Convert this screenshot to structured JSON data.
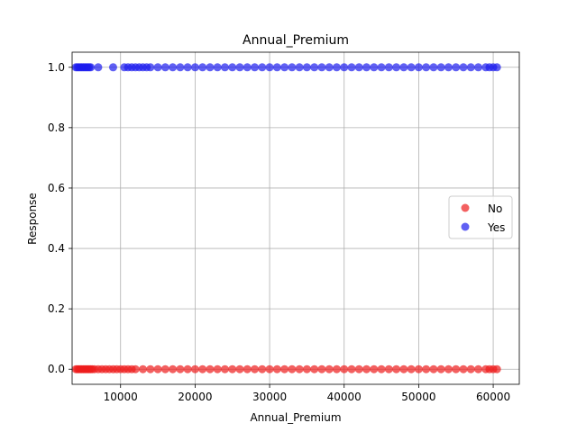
{
  "chart_data": {
    "type": "scatter",
    "title": "Annual_Premium",
    "xlabel": "Annual_Premium",
    "ylabel": "Response",
    "xlim": [
      3500,
      63500
    ],
    "ylim": [
      -0.05,
      1.05
    ],
    "xticks": [
      10000,
      20000,
      30000,
      40000,
      50000,
      60000
    ],
    "xtick_labels": [
      "10000",
      "20000",
      "30000",
      "40000",
      "50000",
      "60000"
    ],
    "yticks": [
      0.0,
      0.2,
      0.4,
      0.6,
      0.8,
      1.0
    ],
    "ytick_labels": [
      "0.0",
      "0.2",
      "0.4",
      "0.6",
      "0.8",
      "1.0"
    ],
    "grid": true,
    "legend_position": "right",
    "series": [
      {
        "name": "No",
        "color": "#ee1c1c",
        "alpha": 0.7,
        "y": 0,
        "x": [
          4000,
          4200,
          4400,
          4600,
          4800,
          5000,
          5200,
          5400,
          5600,
          5800,
          6000,
          6200,
          6500,
          7000,
          7500,
          8000,
          8500,
          9000,
          9500,
          10000,
          10500,
          11000,
          11500,
          12000,
          13000,
          14000,
          15000,
          16000,
          17000,
          18000,
          19000,
          20000,
          21000,
          22000,
          23000,
          24000,
          25000,
          26000,
          27000,
          28000,
          29000,
          30000,
          31000,
          32000,
          33000,
          34000,
          35000,
          36000,
          37000,
          38000,
          39000,
          40000,
          41000,
          42000,
          43000,
          44000,
          45000,
          46000,
          47000,
          48000,
          49000,
          50000,
          51000,
          52000,
          53000,
          54000,
          55000,
          56000,
          57000,
          58000,
          59000,
          59500,
          60000,
          60500
        ]
      },
      {
        "name": "Yes",
        "color": "#1c1cee",
        "alpha": 0.7,
        "y": 1,
        "x": [
          4000,
          4200,
          4400,
          4600,
          4800,
          5000,
          5200,
          5400,
          5600,
          5800,
          6000,
          7000,
          9000,
          10500,
          11000,
          11500,
          12000,
          12500,
          13000,
          13500,
          14000,
          15000,
          16000,
          17000,
          18000,
          19000,
          20000,
          21000,
          22000,
          23000,
          24000,
          25000,
          26000,
          27000,
          28000,
          29000,
          30000,
          31000,
          32000,
          33000,
          34000,
          35000,
          36000,
          37000,
          38000,
          39000,
          40000,
          41000,
          42000,
          43000,
          44000,
          45000,
          46000,
          47000,
          48000,
          49000,
          50000,
          51000,
          52000,
          53000,
          54000,
          55000,
          56000,
          57000,
          58000,
          59000,
          59500,
          60000,
          60500
        ]
      }
    ]
  }
}
